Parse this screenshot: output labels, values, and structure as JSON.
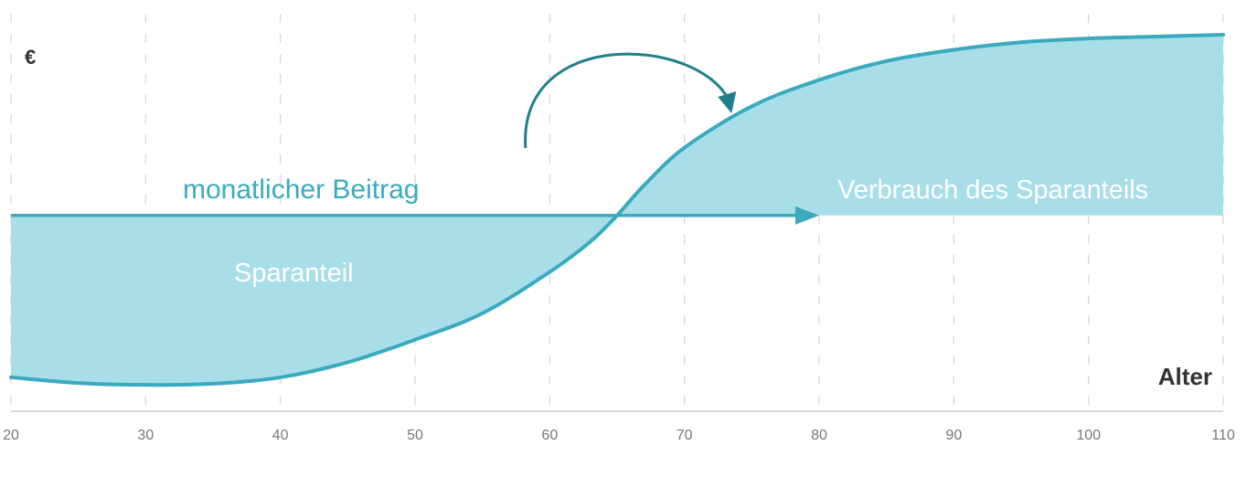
{
  "chart_data": {
    "type": "area",
    "y_unit_label": "€",
    "xlabel": "Alter",
    "x_ticks": [
      20,
      30,
      40,
      50,
      60,
      70,
      80,
      90,
      100,
      110
    ],
    "xlim": [
      20,
      110
    ],
    "ylim": [
      0,
      100
    ],
    "grid": "vertical dashed",
    "series": [
      {
        "name": "monatlicher Beitrag",
        "x": [
          20,
          80
        ],
        "y": [
          52,
          52
        ]
      },
      {
        "x": [
          20,
          25,
          30,
          35,
          40,
          45,
          50,
          55,
          60,
          63,
          65,
          67,
          70,
          75,
          80,
          85,
          90,
          95,
          100,
          105,
          110
        ],
        "y": [
          9,
          7.5,
          7,
          7.3,
          9,
          13,
          19,
          26,
          37,
          45,
          52,
          60,
          70,
          81,
          88,
          93,
          96,
          98,
          99,
          99.5,
          100
        ]
      }
    ],
    "annotations": [
      "monatlicher Beitrag",
      "Sparanteil",
      "Verbrauch des Sparanteils"
    ],
    "colors": {
      "fill": "#a8dee8",
      "line": "#3aaabf",
      "arrow": "#1f7f8c",
      "grid": "#dddddd"
    }
  }
}
